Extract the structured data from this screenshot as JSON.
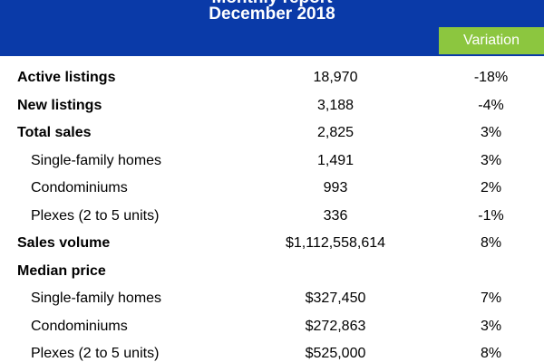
{
  "header": {
    "title_partial": "Monthly report",
    "title_period": "December 2018",
    "variation_label": "Variation"
  },
  "rows": [
    {
      "label": "Active listings",
      "value": "18,970",
      "variation": "-18%",
      "style": "bold"
    },
    {
      "label": "New listings",
      "value": "3,188",
      "variation": "-4%",
      "style": "bold"
    },
    {
      "label": "Total sales",
      "value": "2,825",
      "variation": "3%",
      "style": "bold"
    },
    {
      "label": "Single-family homes",
      "value": "1,491",
      "variation": "3%",
      "style": "sub"
    },
    {
      "label": "Condominiums",
      "value": "993",
      "variation": "2%",
      "style": "sub"
    },
    {
      "label": "Plexes (2 to 5 units)",
      "value": "336",
      "variation": "-1%",
      "style": "sub"
    },
    {
      "label": "Sales volume",
      "value": "$1,112,558,614",
      "variation": "8%",
      "style": "bold"
    },
    {
      "label": "Median price",
      "value": "",
      "variation": "",
      "style": "bold"
    },
    {
      "label": "Single-family homes",
      "value": "$327,450",
      "variation": "7%",
      "style": "sub"
    },
    {
      "label": "Condominiums",
      "value": "$272,863",
      "variation": "3%",
      "style": "sub"
    },
    {
      "label": "Plexes (2 to 5 units)",
      "value": "$525,000",
      "variation": "8%",
      "style": "sub"
    }
  ],
  "colors": {
    "header_bg": "#0a3aa8",
    "variation_bg": "#8cc63f"
  }
}
